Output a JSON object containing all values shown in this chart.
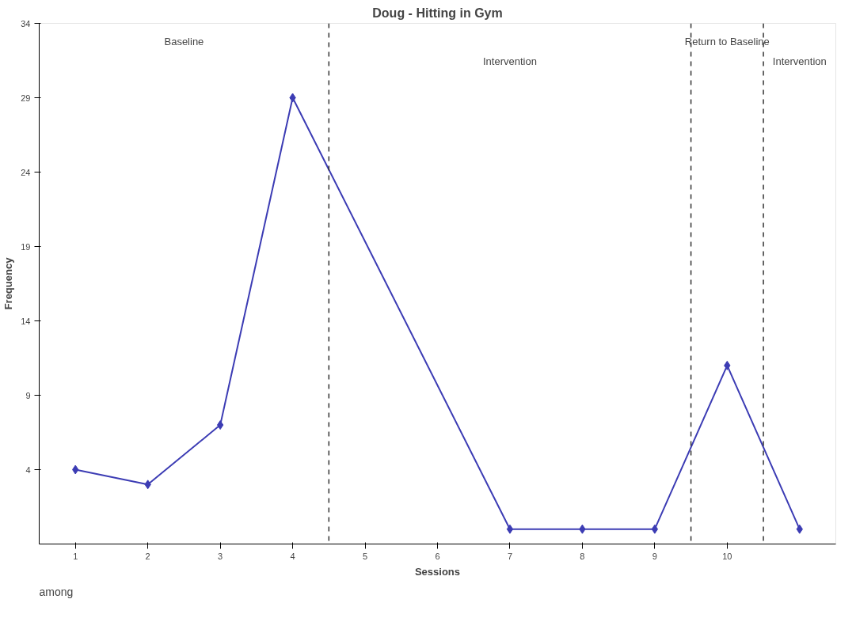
{
  "chart_data": {
    "type": "line",
    "title": "Doug - Hitting in Gym",
    "xlabel": "Sessions",
    "ylabel": "Frequency",
    "x": [
      1,
      2,
      3,
      4,
      7,
      8,
      9,
      10,
      11
    ],
    "series": [
      {
        "color": "#3c3cb4",
        "values": [
          4,
          3,
          7,
          29,
          0,
          0,
          0,
          11,
          0
        ]
      }
    ],
    "xlim": [
      0.5,
      11.5
    ],
    "xticks": [
      1,
      2,
      3,
      4,
      5,
      6,
      7,
      8,
      9,
      10
    ],
    "ylim": [
      -1,
      34
    ],
    "yticks": [
      4,
      9,
      14,
      19,
      24,
      29,
      34
    ],
    "marker": "diamond",
    "line_style": "solid",
    "grid": false,
    "ref_lines": [
      {
        "axis": "x",
        "value": 4.5,
        "line_style": "dashed",
        "color": "#333333"
      },
      {
        "axis": "x",
        "value": 9.5,
        "line_style": "dashed",
        "color": "#333333"
      },
      {
        "axis": "x",
        "value": 10.5,
        "line_style": "dashed",
        "color": "#333333"
      }
    ],
    "annotations": [
      "Baseline",
      "Intervention",
      "Return to Baseline",
      "Intervention",
      "among"
    ]
  }
}
